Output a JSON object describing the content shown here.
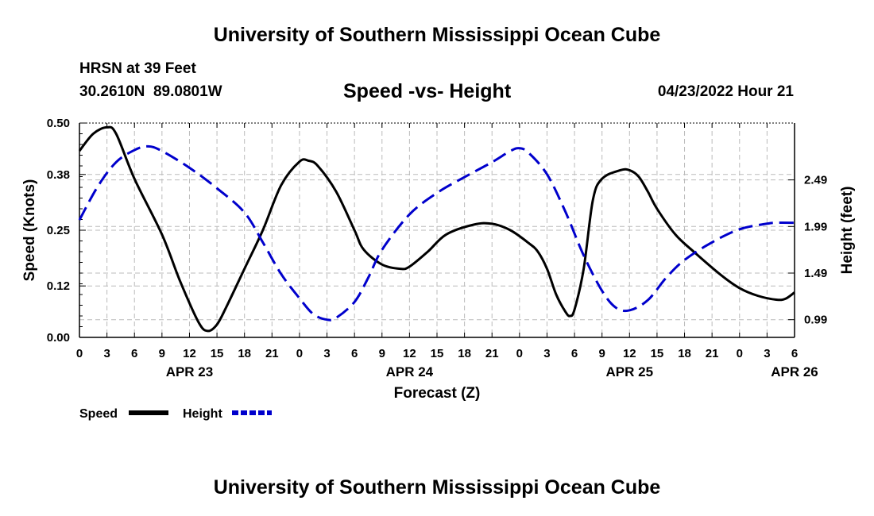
{
  "header": {
    "title": "University of Southern Mississippi Ocean Cube",
    "station": "HRSN at 39 Feet",
    "coords": "30.2610N  89.0801W",
    "subtitle": "Speed -vs- Height",
    "timestamp": "04/23/2022 Hour 21"
  },
  "footer": {
    "title": "University of Southern Mississippi Ocean Cube"
  },
  "chart_data": {
    "type": "line",
    "title": "Speed -vs- Height",
    "xlabel": "Forecast (Z)",
    "ylabel_left": "Speed (Knots)",
    "ylabel_right": "Height (feet)",
    "x_unit": "hours since 04/23/2022 00Z",
    "xlim": [
      0,
      78
    ],
    "ylim_left": [
      0,
      0.5
    ],
    "ylim_right": [
      0.8,
      3.1
    ],
    "x_ticks": [
      0,
      3,
      6,
      9,
      12,
      15,
      18,
      21,
      24,
      27,
      30,
      33,
      36,
      39,
      42,
      45,
      48,
      51,
      54,
      57,
      60,
      63,
      66,
      69,
      72,
      75,
      78
    ],
    "x_tick_labels": [
      "0",
      "3",
      "6",
      "9",
      "12",
      "15",
      "18",
      "21",
      "0",
      "3",
      "6",
      "9",
      "12",
      "15",
      "18",
      "21",
      "0",
      "3",
      "6",
      "9",
      "12",
      "15",
      "18",
      "21",
      "0",
      "3",
      "6"
    ],
    "date_labels": [
      {
        "label": "APR 23",
        "x": 12
      },
      {
        "label": "APR 24",
        "x": 36
      },
      {
        "label": "APR 25",
        "x": 60
      },
      {
        "label": "APR 26",
        "x": 78
      }
    ],
    "y_ticks_left": [
      "0.00",
      "0.12",
      "0.25",
      "0.38",
      "0.50"
    ],
    "y_ticks_right": [
      "0.99",
      "1.49",
      "1.99",
      "2.49"
    ],
    "grid": true,
    "legend_position": "bottom-left",
    "series": [
      {
        "name": "Speed",
        "axis": "left",
        "color": "#000000",
        "dash": "solid",
        "points": [
          [
            0,
            0.435
          ],
          [
            1.5,
            0.475
          ],
          [
            3,
            0.49
          ],
          [
            4,
            0.475
          ],
          [
            6,
            0.37
          ],
          [
            9,
            0.24
          ],
          [
            11,
            0.13
          ],
          [
            13,
            0.035
          ],
          [
            14,
            0.015
          ],
          [
            15,
            0.03
          ],
          [
            16,
            0.07
          ],
          [
            18,
            0.16
          ],
          [
            20,
            0.25
          ],
          [
            22,
            0.355
          ],
          [
            24,
            0.41
          ],
          [
            25,
            0.412
          ],
          [
            26,
            0.4
          ],
          [
            28,
            0.34
          ],
          [
            30,
            0.25
          ],
          [
            31,
            0.205
          ],
          [
            33,
            0.17
          ],
          [
            35,
            0.16
          ],
          [
            36,
            0.165
          ],
          [
            38,
            0.2
          ],
          [
            40,
            0.24
          ],
          [
            43,
            0.263
          ],
          [
            45,
            0.265
          ],
          [
            47,
            0.25
          ],
          [
            49,
            0.22
          ],
          [
            50,
            0.2
          ],
          [
            51,
            0.16
          ],
          [
            52,
            0.1
          ],
          [
            53,
            0.06
          ],
          [
            53.5,
            0.05
          ],
          [
            54,
            0.065
          ],
          [
            55,
            0.16
          ],
          [
            56,
            0.32
          ],
          [
            57,
            0.37
          ],
          [
            59,
            0.39
          ],
          [
            60,
            0.39
          ],
          [
            61,
            0.375
          ],
          [
            62,
            0.34
          ],
          [
            63,
            0.3
          ],
          [
            65,
            0.24
          ],
          [
            67,
            0.2
          ],
          [
            70,
            0.145
          ],
          [
            72,
            0.115
          ],
          [
            74,
            0.097
          ],
          [
            76,
            0.088
          ],
          [
            77,
            0.09
          ],
          [
            78,
            0.105
          ]
        ]
      },
      {
        "name": "Height",
        "axis": "right",
        "color": "#0000cc",
        "dash": "dashed",
        "points": [
          [
            0,
            2.06
          ],
          [
            2,
            2.42
          ],
          [
            4,
            2.68
          ],
          [
            6,
            2.81
          ],
          [
            7.5,
            2.85
          ],
          [
            9,
            2.8
          ],
          [
            12,
            2.62
          ],
          [
            15,
            2.4
          ],
          [
            18,
            2.14
          ],
          [
            20,
            1.82
          ],
          [
            22,
            1.48
          ],
          [
            24,
            1.22
          ],
          [
            25.5,
            1.05
          ],
          [
            27,
            0.99
          ],
          [
            28,
            1.01
          ],
          [
            30,
            1.18
          ],
          [
            31.5,
            1.44
          ],
          [
            33,
            1.74
          ],
          [
            36,
            2.12
          ],
          [
            39,
            2.35
          ],
          [
            42,
            2.52
          ],
          [
            45,
            2.68
          ],
          [
            47,
            2.8
          ],
          [
            48,
            2.83
          ],
          [
            49,
            2.78
          ],
          [
            51,
            2.55
          ],
          [
            53,
            2.15
          ],
          [
            55,
            1.68
          ],
          [
            57,
            1.3
          ],
          [
            58.5,
            1.12
          ],
          [
            60,
            1.09
          ],
          [
            62,
            1.2
          ],
          [
            64,
            1.44
          ],
          [
            66,
            1.63
          ],
          [
            69,
            1.82
          ],
          [
            72,
            1.96
          ],
          [
            75,
            2.02
          ],
          [
            76,
            2.03
          ],
          [
            78,
            2.03
          ]
        ]
      }
    ]
  }
}
